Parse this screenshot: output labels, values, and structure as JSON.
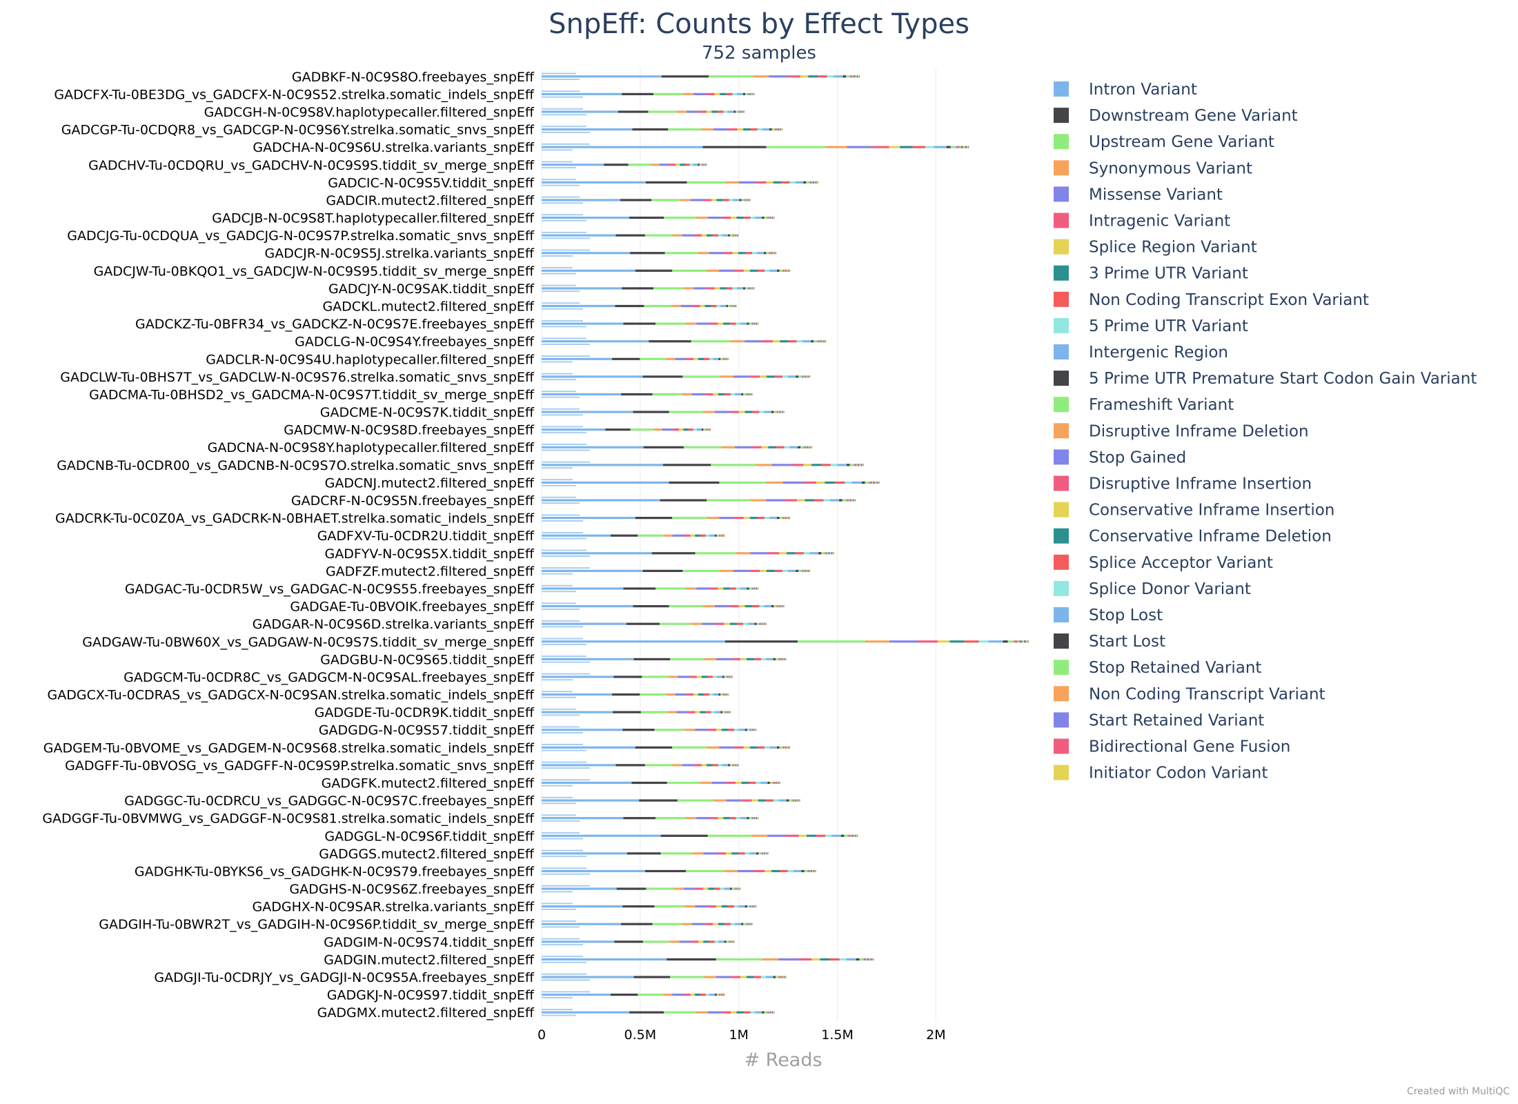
{
  "chart_data": {
    "type": "bar",
    "orientation": "horizontal",
    "stacked": true,
    "title": "SnpEff: Counts by Effect Types",
    "subtitle": "752 samples",
    "xlabel": "# Reads",
    "ylabel": "",
    "xlim": [
      0,
      2450000
    ],
    "x_ticks": [
      {
        "value": 0,
        "label": "0"
      },
      {
        "value": 500000,
        "label": "0.5M"
      },
      {
        "value": 1000000,
        "label": "1M"
      },
      {
        "value": 1500000,
        "label": "1.5M"
      },
      {
        "value": 2000000,
        "label": "2M"
      }
    ],
    "grid": true,
    "legend_position": "right",
    "credit": "Created with MultiQC",
    "categories": [
      "GADBKF-N-0C9S8O.freebayes_snpEff",
      "GADCFX-Tu-0BE3DG_vs_GADCFX-N-0C9S52.strelka.somatic_indels_snpEff",
      "GADCGH-N-0C9S8V.haplotypecaller.filtered_snpEff",
      "GADCGP-Tu-0CDQR8_vs_GADCGP-N-0C9S6Y.strelka.somatic_snvs_snpEff",
      "GADCHA-N-0C9S6U.strelka.variants_snpEff",
      "GADCHV-Tu-0CDQRU_vs_GADCHV-N-0C9S9S.tiddit_sv_merge_snpEff",
      "GADCIC-N-0C9S5V.tiddit_snpEff",
      "GADCIR.mutect2.filtered_snpEff",
      "GADCJB-N-0C9S8T.haplotypecaller.filtered_snpEff",
      "GADCJG-Tu-0CDQUA_vs_GADCJG-N-0C9S7P.strelka.somatic_snvs_snpEff",
      "GADCJR-N-0C9S5J.strelka.variants_snpEff",
      "GADCJW-Tu-0BKQO1_vs_GADCJW-N-0C9S95.tiddit_sv_merge_snpEff",
      "GADCJY-N-0C9SAK.tiddit_snpEff",
      "GADCKL.mutect2.filtered_snpEff",
      "GADCKZ-Tu-0BFR34_vs_GADCKZ-N-0C9S7E.freebayes_snpEff",
      "GADCLG-N-0C9S4Y.freebayes_snpEff",
      "GADCLR-N-0C9S4U.haplotypecaller.filtered_snpEff",
      "GADCLW-Tu-0BHS7T_vs_GADCLW-N-0C9S76.strelka.somatic_snvs_snpEff",
      "GADCMA-Tu-0BHSD2_vs_GADCMA-N-0C9S7T.tiddit_sv_merge_snpEff",
      "GADCME-N-0C9S7K.tiddit_snpEff",
      "GADCMW-N-0C9S8D.freebayes_snpEff",
      "GADCNA-N-0C9S8Y.haplotypecaller.filtered_snpEff",
      "GADCNB-Tu-0CDR00_vs_GADCNB-N-0C9S7O.strelka.somatic_snvs_snpEff",
      "GADCNJ.mutect2.filtered_snpEff",
      "GADCRF-N-0C9S5N.freebayes_snpEff",
      "GADCRK-Tu-0C0Z0A_vs_GADCRK-N-0BHAET.strelka.somatic_indels_snpEff",
      "GADFXV-Tu-0CDR2U.tiddit_snpEff",
      "GADFYV-N-0C9S5X.tiddit_snpEff",
      "GADFZF.mutect2.filtered_snpEff",
      "GADGAC-Tu-0CDR5W_vs_GADGAC-N-0C9S55.freebayes_snpEff",
      "GADGAE-Tu-0BVOIK.freebayes_snpEff",
      "GADGAR-N-0C9S6D.strelka.variants_snpEff",
      "GADGAW-Tu-0BW60X_vs_GADGAW-N-0C9S7S.tiddit_sv_merge_snpEff",
      "GADGBU-N-0C9S65.tiddit_snpEff",
      "GADGCM-Tu-0CDR8C_vs_GADGCM-N-0C9SAL.freebayes_snpEff",
      "GADGCX-Tu-0CDRAS_vs_GADGCX-N-0C9SAN.strelka.somatic_indels_snpEff",
      "GADGDE-Tu-0CDR9K.tiddit_snpEff",
      "GADGDG-N-0C9S57.tiddit_snpEff",
      "GADGEM-Tu-0BVOME_vs_GADGEM-N-0C9S68.strelka.somatic_indels_snpEff",
      "GADGFF-Tu-0BVOSG_vs_GADGFF-N-0C9S9P.strelka.somatic_snvs_snpEff",
      "GADGFK.mutect2.filtered_snpEff",
      "GADGGC-Tu-0CDRCU_vs_GADGGC-N-0C9S7C.freebayes_snpEff",
      "GADGGF-Tu-0BVMWG_vs_GADGGF-N-0C9S81.strelka.somatic_indels_snpEff",
      "GADGGL-N-0C9S6F.tiddit_snpEff",
      "GADGGS.mutect2.filtered_snpEff",
      "GADGHK-Tu-0BYKS6_vs_GADGHK-N-0C9S79.freebayes_snpEff",
      "GADGHS-N-0C9S6Z.freebayes_snpEff",
      "GADGHX-N-0C9SAR.strelka.variants_snpEff",
      "GADGIH-Tu-0BWR2T_vs_GADGIH-N-0C9S6P.tiddit_sv_merge_snpEff",
      "GADGIM-N-0C9S74.tiddit_snpEff",
      "GADGIN.mutect2.filtered_snpEff",
      "GADGJI-Tu-0CDRJY_vs_GADGJI-N-0C9S5A.freebayes_snpEff",
      "GADGKJ-N-0C9S97.tiddit_snpEff",
      "GADGMX.mutect2.filtered_snpEff"
    ],
    "totals": [
      1600000,
      1070000,
      1020000,
      1210000,
      2150000,
      830000,
      1390000,
      1050000,
      1170000,
      990000,
      1180000,
      1250000,
      1070000,
      980000,
      1090000,
      1430000,
      940000,
      1350000,
      1060000,
      1220000,
      850000,
      1360000,
      1620000,
      1700000,
      1580000,
      1250000,
      920000,
      1470000,
      1350000,
      1090000,
      1220000,
      1130000,
      2450000,
      1230000,
      960000,
      940000,
      950000,
      1080000,
      1250000,
      990000,
      1200000,
      1300000,
      1090000,
      1590000,
      1140000,
      1380000,
      1000000,
      1080000,
      1060000,
      970000,
      1670000,
      1230000,
      920000,
      1170000
    ],
    "series": [
      {
        "name": "Intron Variant",
        "color": "#7cb5ec",
        "share": 0.38
      },
      {
        "name": "Downstream Gene Variant",
        "color": "#434348",
        "share": 0.15
      },
      {
        "name": "Upstream Gene Variant",
        "color": "#90ed7d",
        "share": 0.14
      },
      {
        "name": "Synonymous Variant",
        "color": "#f7a35c",
        "share": 0.05
      },
      {
        "name": "Missense Variant",
        "color": "#8085e9",
        "share": 0.06
      },
      {
        "name": "Intragenic Variant",
        "color": "#f15c80",
        "share": 0.04
      },
      {
        "name": "Splice Region Variant",
        "color": "#e4d354",
        "share": 0.025
      },
      {
        "name": "3 Prime UTR Variant",
        "color": "#2b908f",
        "share": 0.03
      },
      {
        "name": "Non Coding Transcript Exon Variant",
        "color": "#f45b5b",
        "share": 0.03
      },
      {
        "name": "5 Prime UTR Variant",
        "color": "#91e8e1",
        "share": 0.02
      },
      {
        "name": "Intergenic Region",
        "color": "#7cb5ec",
        "share": 0.03
      },
      {
        "name": "5 Prime UTR Premature Start Codon Gain Variant",
        "color": "#434348",
        "share": 0.01
      },
      {
        "name": "Frameshift Variant",
        "color": "#90ed7d",
        "share": 0.01
      },
      {
        "name": "Disruptive Inframe Deletion",
        "color": "#f7a35c",
        "share": 0.004
      },
      {
        "name": "Stop Gained",
        "color": "#8085e9",
        "share": 0.004
      },
      {
        "name": "Disruptive Inframe Insertion",
        "color": "#f15c80",
        "share": 0.003
      },
      {
        "name": "Conservative Inframe Insertion",
        "color": "#e4d354",
        "share": 0.003
      },
      {
        "name": "Conservative Inframe Deletion",
        "color": "#2b908f",
        "share": 0.003
      },
      {
        "name": "Splice Acceptor Variant",
        "color": "#f45b5b",
        "share": 0.003
      },
      {
        "name": "Splice Donor Variant",
        "color": "#91e8e1",
        "share": 0.003
      },
      {
        "name": "Stop Lost",
        "color": "#7cb5ec",
        "share": 0.002
      },
      {
        "name": "Start Lost",
        "color": "#434348",
        "share": 0.002
      },
      {
        "name": "Stop Retained Variant",
        "color": "#90ed7d",
        "share": 0.002
      },
      {
        "name": "Non Coding Transcript Variant",
        "color": "#f7a35c",
        "share": 0.002
      },
      {
        "name": "Start Retained Variant",
        "color": "#8085e9",
        "share": 0.001
      },
      {
        "name": "Bidirectional Gene Fusion",
        "color": "#f15c80",
        "share": 0.001
      },
      {
        "name": "Initiator Codon Variant",
        "color": "#e4d354",
        "share": 0.001
      }
    ]
  }
}
